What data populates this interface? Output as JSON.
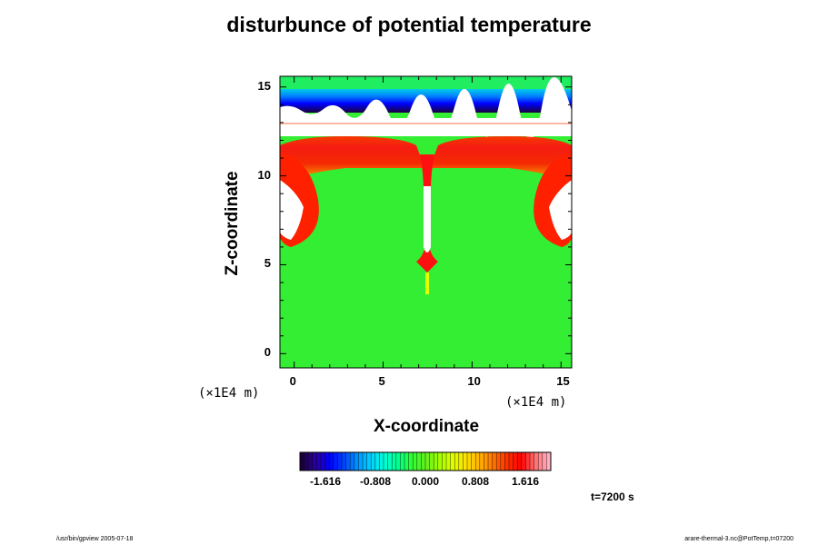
{
  "title": "disturbunce of potential temperature",
  "chart_data": {
    "type": "heatmap",
    "title": "disturbunce of potential temperature",
    "xlabel": "X-coordinate",
    "ylabel": "Z-coordinate",
    "x_unit": "(×1E4 m)",
    "y_unit": "(×1E4 m)",
    "xlim": [
      -0.8,
      15.6
    ],
    "ylim": [
      -0.8,
      15.6
    ],
    "x_ticks": [
      0,
      5,
      10,
      15
    ],
    "y_ticks": [
      0,
      5,
      10,
      15
    ],
    "colorbar": {
      "labels": [
        "-1.616",
        "-0.808",
        "0.000",
        "0.808",
        "1.616"
      ],
      "colors": [
        "#1a003a",
        "#2a00a0",
        "#0000ff",
        "#0040ff",
        "#0090ff",
        "#00d0ff",
        "#00ffd8",
        "#00ff90",
        "#30ff30",
        "#60ee20",
        "#a0ff00",
        "#e0ff00",
        "#ffe000",
        "#ffb000",
        "#ff7000",
        "#ff3000",
        "#ff0000",
        "#ff7070",
        "#ffb0c0"
      ]
    },
    "colorbar_ticks": [
      0,
      0.25,
      0.5,
      0.75,
      1.0
    ],
    "regions": [
      {
        "name": "background",
        "value": 0.0
      },
      {
        "name": "upper-layer",
        "z": [
          13.6,
          15.6
        ],
        "value": -1.2
      },
      {
        "name": "warm-band",
        "z": [
          9.6,
          11.6
        ],
        "value": 1.4
      },
      {
        "name": "central-plume",
        "x": 7.5,
        "z": [
          3.5,
          10.5
        ],
        "value": 1.5
      },
      {
        "name": "left-edge-plume",
        "x": [
          -0.8,
          1.8
        ],
        "z": [
          6.5,
          11.5
        ],
        "value": 1.5
      },
      {
        "name": "right-edge-plume",
        "x": [
          13.2,
          15.6
        ],
        "z": [
          6.5,
          11.5
        ],
        "value": 1.5
      }
    ]
  },
  "time_label": "t=7200 s",
  "footer_left": "/usr/bin/gpview 2005-07-18",
  "footer_right": "arare-thermal-3.nc@PotTemp,t=07200"
}
